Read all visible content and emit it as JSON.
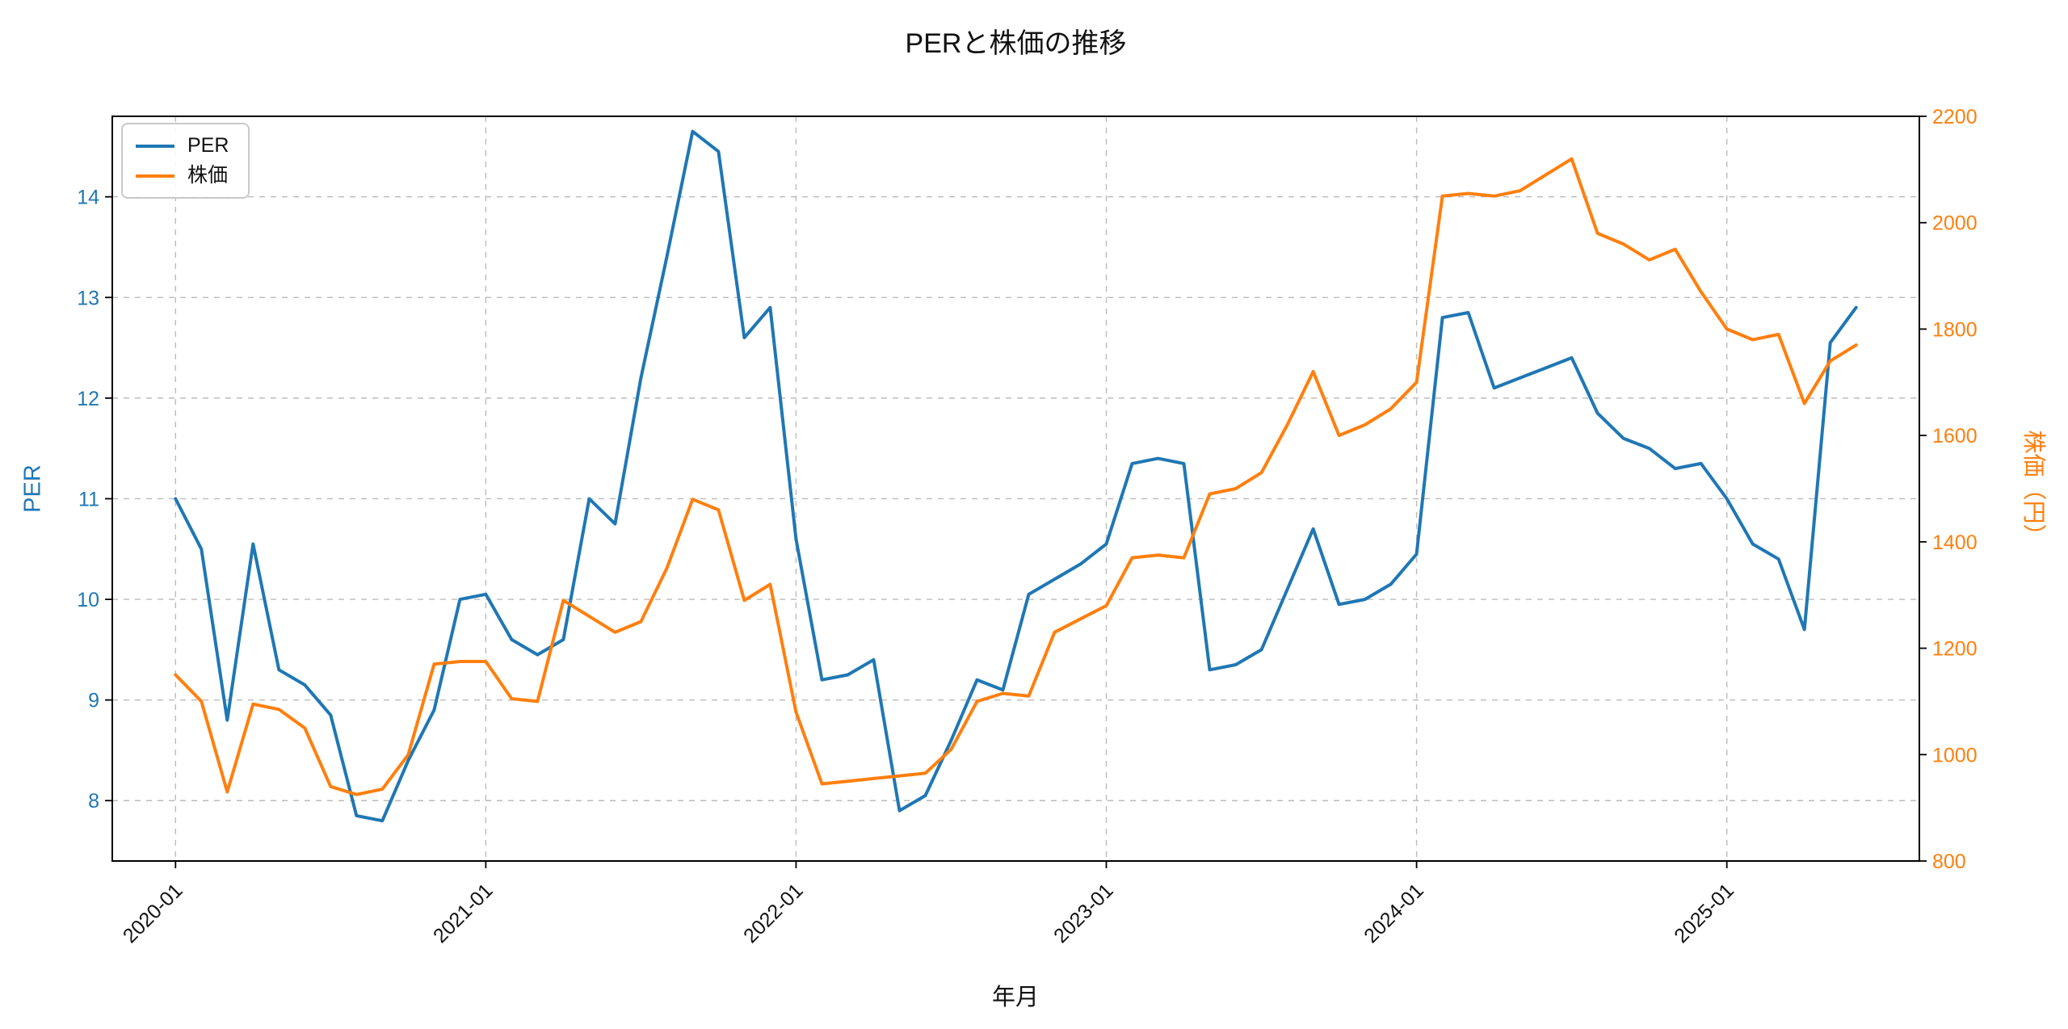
{
  "chart_data": {
    "type": "line",
    "title": "PERと株価の推移",
    "xlabel": "年月",
    "ylabel_left": "PER",
    "ylabel_right": "株価（円）",
    "grid": true,
    "legend_position": "upper-left",
    "x": [
      "2020-01",
      "2020-02",
      "2020-03",
      "2020-04",
      "2020-05",
      "2020-06",
      "2020-07",
      "2020-08",
      "2020-09",
      "2020-10",
      "2020-11",
      "2020-12",
      "2021-01",
      "2021-02",
      "2021-03",
      "2021-04",
      "2021-05",
      "2021-06",
      "2021-07",
      "2021-08",
      "2021-09",
      "2021-10",
      "2021-11",
      "2021-12",
      "2022-01",
      "2022-02",
      "2022-03",
      "2022-04",
      "2022-05",
      "2022-06",
      "2022-07",
      "2022-08",
      "2022-09",
      "2022-10",
      "2022-11",
      "2022-12",
      "2023-01",
      "2023-02",
      "2023-03",
      "2023-04",
      "2023-05",
      "2023-06",
      "2023-07",
      "2023-08",
      "2023-09",
      "2023-10",
      "2023-11",
      "2023-12",
      "2024-01",
      "2024-02",
      "2024-03",
      "2024-04",
      "2024-05",
      "2024-06",
      "2024-07",
      "2024-08",
      "2024-09",
      "2024-10",
      "2024-11",
      "2024-12",
      "2025-01",
      "2025-02",
      "2025-03",
      "2025-04",
      "2025-05",
      "2025-06"
    ],
    "x_tick_labels": [
      "2020-01",
      "2021-01",
      "2022-01",
      "2023-01",
      "2024-01",
      "2025-01"
    ],
    "y_ticks_left": [
      8,
      9,
      10,
      11,
      12,
      13,
      14
    ],
    "y_ticks_right": [
      800,
      1000,
      1200,
      1400,
      1600,
      1800,
      2000,
      2200
    ],
    "ylim_left": [
      7.4,
      14.8
    ],
    "ylim_right": [
      800,
      2200
    ],
    "series": [
      {
        "name": "PER",
        "axis": "left",
        "color": "#1f77b4",
        "values": [
          11.0,
          10.5,
          8.8,
          10.55,
          9.3,
          9.15,
          8.85,
          7.85,
          7.8,
          8.4,
          8.9,
          10.0,
          10.05,
          9.6,
          9.45,
          9.6,
          11.0,
          10.75,
          12.2,
          13.4,
          14.65,
          14.45,
          12.6,
          12.9,
          10.6,
          9.2,
          9.25,
          9.4,
          7.9,
          8.05,
          8.6,
          9.2,
          9.1,
          10.05,
          10.2,
          10.35,
          10.55,
          11.35,
          11.4,
          11.35,
          9.3,
          9.35,
          9.5,
          10.1,
          10.7,
          9.95,
          10.0,
          10.15,
          10.45,
          12.8,
          12.85,
          12.1,
          12.2,
          12.3,
          12.4,
          11.85,
          11.6,
          11.5,
          11.3,
          11.35,
          11.0,
          10.55,
          10.4,
          9.7,
          12.55,
          12.9
        ]
      },
      {
        "name": "株価",
        "axis": "right",
        "color": "#ff7f0e",
        "values": [
          1150,
          1100,
          930,
          1095,
          1085,
          1050,
          940,
          925,
          935,
          1000,
          1170,
          1175,
          1175,
          1105,
          1100,
          1290,
          1260,
          1230,
          1250,
          1350,
          1480,
          1460,
          1290,
          1320,
          1080,
          945,
          950,
          955,
          960,
          965,
          1010,
          1100,
          1115,
          1110,
          1230,
          1255,
          1280,
          1370,
          1375,
          1370,
          1490,
          1500,
          1530,
          1620,
          1720,
          1600,
          1620,
          1650,
          1700,
          2050,
          2055,
          2050,
          2060,
          2090,
          2120,
          1980,
          1960,
          1930,
          1950,
          1870,
          1800,
          1780,
          1790,
          1660,
          1740,
          1770
        ]
      }
    ],
    "style": {
      "grid_color": "#b0b0b0",
      "spine_color": "#000000",
      "tick_label_color_left": "#1f77b4",
      "tick_label_color_right": "#ff7f0e",
      "tick_label_color_x": "#111111"
    }
  }
}
